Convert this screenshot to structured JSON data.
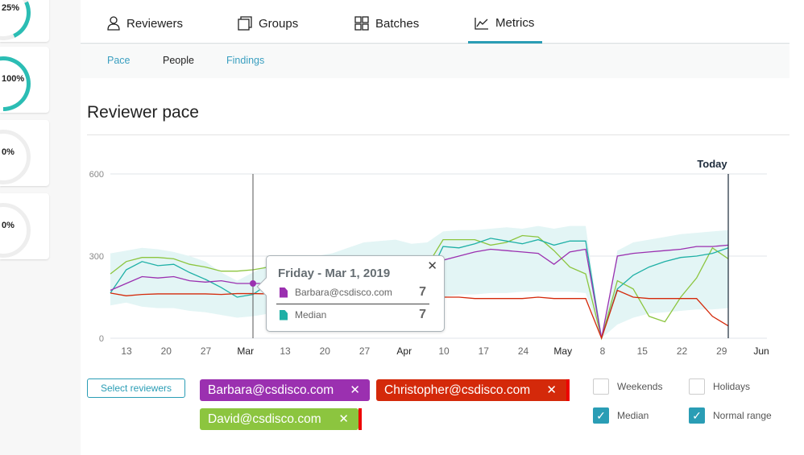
{
  "sidebar": {
    "cards": [
      {
        "percent": "25%"
      },
      {
        "percent": "100%"
      },
      {
        "percent": "0%"
      },
      {
        "percent": "0%"
      }
    ]
  },
  "tabs": [
    {
      "label": "Reviewers",
      "icon": "person-icon"
    },
    {
      "label": "Groups",
      "icon": "copy-icon"
    },
    {
      "label": "Batches",
      "icon": "grid-icon"
    },
    {
      "label": "Metrics",
      "icon": "line-chart-icon",
      "active": true
    }
  ],
  "subtabs": [
    {
      "label": "Pace",
      "color": "#3a9fc0"
    },
    {
      "label": "People",
      "color": "#222222",
      "active": true
    },
    {
      "label": "Findings",
      "color": "#3a9fc0"
    }
  ],
  "page_title": "Reviewer pace",
  "tooltip": {
    "title": "Friday - Mar 1, 2019",
    "rows": [
      {
        "label": "Barbara@csdisco.com",
        "value": "7",
        "color": "#9b30b0"
      },
      {
        "label": "Median",
        "value": "7",
        "color": "#1fb0a6"
      }
    ]
  },
  "controls": {
    "select_reviewers": "Select reviewers",
    "chips": [
      {
        "label": "Barbara@csdisco.com",
        "color": "#9b30b0"
      },
      {
        "label": "Christopher@csdisco.com",
        "color": "#d4290a"
      },
      {
        "label": "David@csdisco.com",
        "color": "#8cc53f"
      }
    ],
    "checkboxes": [
      {
        "label": "Weekends",
        "checked": false
      },
      {
        "label": "Holidays",
        "checked": false
      },
      {
        "label": "Median",
        "checked": true
      },
      {
        "label": "Normal range",
        "checked": true
      }
    ]
  },
  "chart_data": {
    "type": "line",
    "ylim": [
      0,
      600
    ],
    "y_ticks": [
      "0",
      "300",
      "600"
    ],
    "x_ticks": [
      "13",
      "20",
      "27",
      "Mar",
      "13",
      "20",
      "27",
      "Apr",
      "10",
      "17",
      "24",
      "May",
      "8",
      "15",
      "22",
      "29",
      "Jun"
    ],
    "bold_ticks": [
      "Mar",
      "Apr",
      "May",
      "Jun"
    ],
    "today_label": "Today",
    "grid": true,
    "series": [
      {
        "name": "David@csdisco.com",
        "color": "#8cc53f",
        "values": [
          235,
          280,
          295,
          295,
          290,
          270,
          260,
          245,
          245,
          250,
          260,
          258,
          260,
          262,
          265,
          268,
          270,
          270,
          268,
          265,
          265,
          360,
          360,
          360,
          340,
          350,
          375,
          370,
          320,
          260,
          235,
          0,
          210,
          180,
          80,
          60,
          150,
          220,
          330,
          290
        ]
      },
      {
        "name": "Median",
        "color": "#1fb0a6",
        "values": [
          165,
          250,
          280,
          265,
          270,
          240,
          215,
          185,
          150,
          160,
          200,
          200,
          205,
          210,
          210,
          215,
          215,
          215,
          215,
          215,
          215,
          335,
          330,
          345,
          365,
          355,
          345,
          360,
          340,
          355,
          355,
          0,
          180,
          230,
          260,
          280,
          295,
          300,
          310,
          330
        ]
      },
      {
        "name": "Barbara@csdisco.com",
        "color": "#9b30b0",
        "values": [
          175,
          200,
          225,
          220,
          225,
          210,
          205,
          210,
          200,
          200,
          200,
          200,
          200,
          200,
          200,
          200,
          200,
          200,
          200,
          200,
          215,
          285,
          300,
          315,
          325,
          320,
          315,
          310,
          270,
          315,
          325,
          0,
          300,
          310,
          315,
          320,
          325,
          335,
          335,
          340
        ]
      },
      {
        "name": "Christopher@csdisco.com",
        "color": "#d4290a",
        "values": [
          165,
          155,
          160,
          162,
          162,
          162,
          162,
          160,
          163,
          163,
          162,
          162,
          162,
          162,
          162,
          162,
          160,
          160,
          160,
          160,
          160,
          150,
          150,
          145,
          145,
          145,
          145,
          150,
          145,
          145,
          145,
          0,
          175,
          150,
          145,
          145,
          145,
          145,
          80,
          45
        ]
      }
    ],
    "normal_range": {
      "color": "#e3f5f5",
      "upper": [
        310,
        320,
        330,
        325,
        315,
        300,
        280,
        240,
        210,
        240,
        270,
        290,
        300,
        300,
        310,
        330,
        350,
        355,
        360,
        345,
        350,
        390,
        395,
        395,
        400,
        405,
        400,
        410,
        400,
        410,
        410,
        0,
        320,
        350,
        360,
        370,
        380,
        385,
        390,
        395
      ],
      "lower": [
        120,
        130,
        115,
        110,
        110,
        100,
        95,
        85,
        75,
        80,
        90,
        95,
        100,
        110,
        120,
        130,
        140,
        150,
        155,
        150,
        145,
        150,
        160,
        160,
        165,
        165,
        170,
        170,
        170,
        170,
        165,
        0,
        50,
        75,
        90,
        95,
        100,
        105,
        105,
        110
      ]
    }
  }
}
